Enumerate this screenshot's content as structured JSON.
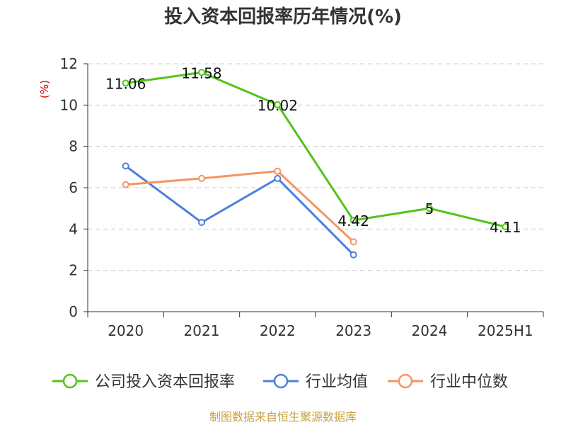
{
  "chart_data": {
    "type": "line",
    "title": "投入资本回报率历年情况(%)",
    "ylabel": "(%)",
    "categories": [
      "2020",
      "2021",
      "2022",
      "2023",
      "2024",
      "2025H1"
    ],
    "ylim": [
      0,
      12
    ],
    "yticks": [
      0,
      2,
      4,
      6,
      8,
      10,
      12
    ],
    "grid": true,
    "legend_position": "bottom",
    "series": [
      {
        "name": "公司投入资本回报率",
        "color": "#52c41a",
        "values": [
          11.06,
          11.58,
          10.02,
          4.42,
          5,
          4.11
        ],
        "labels": [
          "11.06",
          "11.58",
          "10.02",
          "4.42",
          "5",
          "4.11"
        ]
      },
      {
        "name": "行业均值",
        "color": "#4e7fdc",
        "values": [
          7.05,
          4.32,
          6.45,
          2.75,
          null,
          null
        ]
      },
      {
        "name": "行业中位数",
        "color": "#f59462",
        "values": [
          6.15,
          6.45,
          6.8,
          3.38,
          null,
          null
        ]
      }
    ]
  },
  "source_text": "制图数据来自恒生聚源数据库",
  "colors": {
    "ylabel": "#cc0000",
    "source": "#c8a040",
    "axis": "#333333",
    "grid": "#cccccc"
  }
}
